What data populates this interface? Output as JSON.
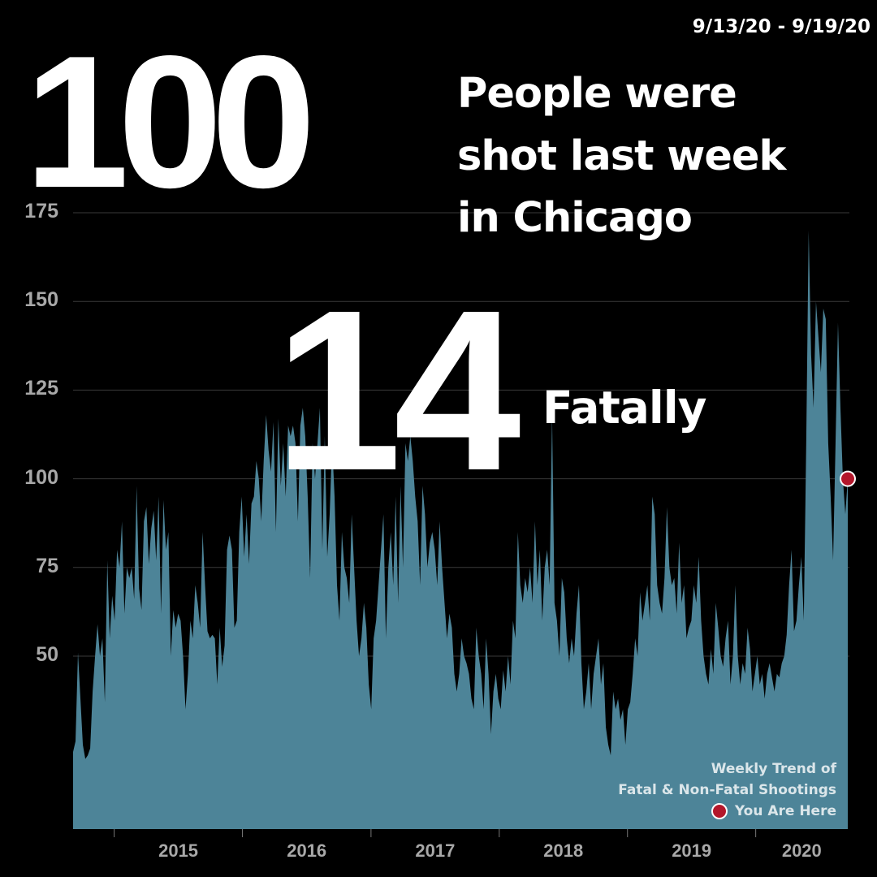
{
  "header": {
    "date_range": "9/13/20 - 9/19/20",
    "total_shot": "100",
    "headline_lines": [
      "People were",
      "shot last week",
      "in Chicago"
    ],
    "fatal_count": "14",
    "fatal_label": "Fatally"
  },
  "legend": {
    "line1": "Weekly Trend of",
    "line2": "Fatal & Non-Fatal Shootings",
    "marker_label": "You Are Here",
    "marker_color": "#b3172b"
  },
  "colors": {
    "background": "#000000",
    "area_fill": "#4d8498",
    "gridline": "#3a3a3a",
    "tick_label": "#a8a8a8"
  },
  "chart_data": {
    "type": "area",
    "title": "",
    "xlabel": "",
    "ylabel": "",
    "ylim": [
      0,
      175
    ],
    "yticks": [
      50,
      75,
      100,
      125,
      150,
      175
    ],
    "grid": true,
    "x_tick_labels": [
      "2015",
      "2016",
      "2017",
      "2018",
      "2019",
      "2020"
    ],
    "x_range": [
      "2014-09-06",
      "2020-09-19"
    ],
    "series": [
      {
        "values": [
          23,
          26,
          51,
          38,
          25,
          21,
          22,
          24,
          40,
          50,
          59,
          50,
          55,
          37,
          77,
          55,
          67,
          60,
          80,
          75,
          88,
          62,
          75,
          72,
          75,
          66,
          98,
          69,
          63,
          88,
          92,
          76,
          86,
          91,
          77,
          95,
          62,
          94,
          80,
          85,
          50,
          63,
          58,
          62,
          60,
          50,
          35,
          45,
          60,
          55,
          70,
          65,
          58,
          85,
          70,
          57,
          55,
          56,
          55,
          42,
          58,
          47,
          53,
          80,
          84,
          80,
          58,
          60,
          85,
          95,
          78,
          90,
          76,
          93,
          95,
          105,
          100,
          88,
          105,
          118,
          108,
          102,
          116,
          85,
          117,
          98,
          110,
          95,
          115,
          112,
          115,
          110,
          88,
          115,
          120,
          112,
          95,
          72,
          110,
          100,
          110,
          120,
          80,
          112,
          78,
          90,
          110,
          95,
          70,
          60,
          85,
          75,
          72,
          65,
          90,
          75,
          60,
          50,
          55,
          65,
          58,
          42,
          35,
          55,
          60,
          70,
          80,
          90,
          55,
          75,
          85,
          70,
          95,
          65,
          98,
          75,
          110,
          105,
          112,
          105,
          95,
          88,
          70,
          98,
          90,
          75,
          82,
          85,
          80,
          70,
          88,
          75,
          65,
          55,
          62,
          58,
          45,
          40,
          45,
          55,
          50,
          48,
          45,
          38,
          35,
          58,
          50,
          45,
          35,
          55,
          45,
          28,
          40,
          45,
          38,
          35,
          46,
          40,
          50,
          42,
          60,
          55,
          85,
          70,
          65,
          72,
          68,
          75,
          65,
          88,
          70,
          80,
          60,
          75,
          80,
          70,
          118,
          65,
          60,
          50,
          72,
          68,
          55,
          48,
          55,
          50,
          62,
          70,
          48,
          35,
          40,
          48,
          35,
          45,
          50,
          55,
          42,
          48,
          30,
          25,
          22,
          40,
          35,
          38,
          32,
          35,
          25,
          35,
          37,
          45,
          55,
          50,
          68,
          60,
          65,
          70,
          60,
          95,
          90,
          70,
          65,
          62,
          72,
          92,
          75,
          70,
          72,
          62,
          82,
          65,
          70,
          55,
          58,
          60,
          70,
          65,
          78,
          60,
          50,
          45,
          42,
          52,
          45,
          65,
          58,
          50,
          47,
          55,
          60,
          42,
          50,
          70,
          50,
          42,
          48,
          45,
          58,
          52,
          40,
          45,
          50,
          42,
          45,
          38,
          45,
          48,
          44,
          40,
          45,
          44,
          48,
          50,
          56,
          70,
          80,
          57,
          60,
          70,
          78,
          60,
          110,
          170,
          135,
          120,
          150,
          140,
          130,
          148,
          145,
          110,
          95,
          77,
          110,
          144,
          120,
          100,
          90,
          100
        ]
      }
    ],
    "current_marker": {
      "date": "2020-09-19",
      "value": 100,
      "label": "You Are Here"
    }
  }
}
